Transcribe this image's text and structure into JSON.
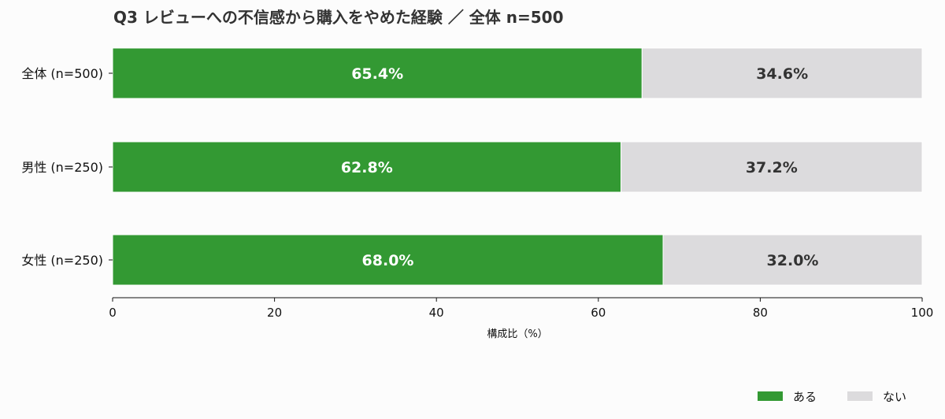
{
  "chart_data": {
    "type": "bar",
    "orientation": "horizontal",
    "stacked": true,
    "title": "Q3 レビューへの不信感から購入をやめた経験 ／ 全体 n=500",
    "categories": [
      "全体 (n=500)",
      "男性 (n=250)",
      "女性 (n=250)"
    ],
    "series": [
      {
        "name": "ある",
        "values": [
          65.4,
          62.8,
          68.0
        ],
        "labels": [
          "65.4%",
          "62.8%",
          "68.0%"
        ],
        "color": "#339933"
      },
      {
        "name": "ない",
        "values": [
          34.6,
          37.2,
          32.0
        ],
        "labels": [
          "34.6%",
          "37.2%",
          "32.0%"
        ],
        "color": "#dcdbdd"
      }
    ],
    "xlabel": "構成比（%）",
    "ylabel": "",
    "xlim": [
      0,
      100
    ],
    "xticks": [
      0,
      20,
      40,
      60,
      80,
      100
    ],
    "xtick_labels": [
      "0",
      "20",
      "40",
      "60",
      "80",
      "100"
    ],
    "grid": false,
    "legend_position": "bottom-right"
  }
}
